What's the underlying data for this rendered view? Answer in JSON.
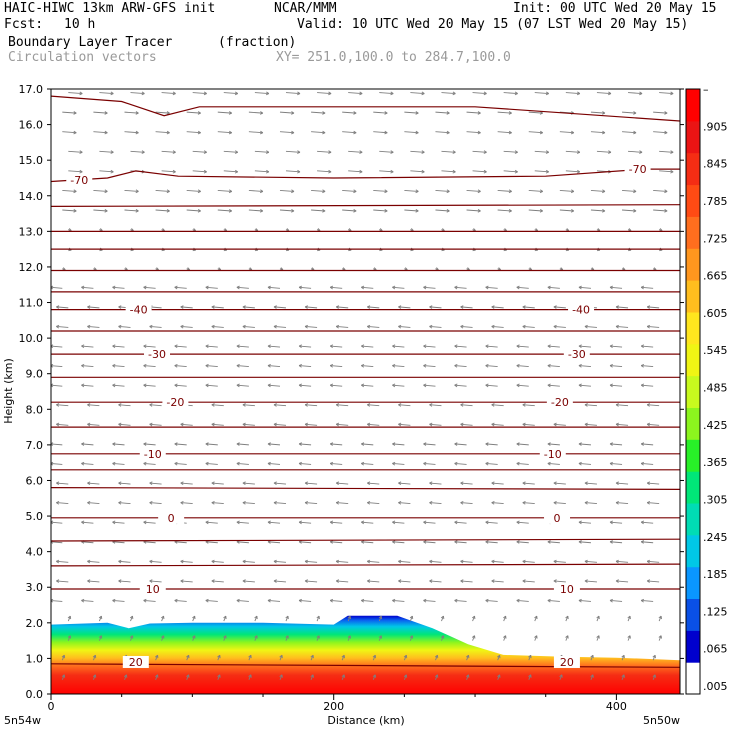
{
  "header": {
    "model": "HAIC-HIWC 13km ARW-GFS init",
    "org": "NCAR/MMM",
    "init": "Init: 00 UTC Wed 20 May 15",
    "fcst_label": "Fcst:",
    "fcst_value": "10 h",
    "valid": "Valid: 10 UTC Wed 20 May 15 (07 LST Wed 20 May 15)",
    "field": "Boundary Layer Tracer",
    "units": "(fraction)",
    "vectors": "Circulation vectors",
    "xy": "XY= 251.0,100.0 to 284.7,100.0"
  },
  "colors": {
    "contour": "#7a0000",
    "vector": "#7f7f7f",
    "colorbar": [
      "#ffffff",
      "#0000cd",
      "#0a50e6",
      "#0a96ff",
      "#00c8e6",
      "#00dcb4",
      "#00e678",
      "#28f028",
      "#8cf51e",
      "#c8fa1e",
      "#f0f514",
      "#ffe61e",
      "#ffbe1e",
      "#ff961e",
      "#ff6e1e",
      "#ff4b14",
      "#f52d14",
      "#eb1414",
      "#ff0000"
    ]
  },
  "chart_data": {
    "type": "heatmap",
    "title": "Boundary Layer Tracer",
    "ylabel": "Height (km)",
    "xlabel": "Distance (km)",
    "xlim": [
      0,
      445
    ],
    "ylim": [
      0,
      17
    ],
    "y_ticks": [
      "0.0",
      "1.0",
      "2.0",
      "3.0",
      "4.0",
      "5.0",
      "6.0",
      "7.0",
      "8.0",
      "9.0",
      "10.0",
      "11.0",
      "12.0",
      "13.0",
      "14.0",
      "15.0",
      "16.0",
      "17.0"
    ],
    "x_ticks": [
      {
        "value": 0,
        "label": "0"
      },
      {
        "value": 200,
        "label": "200"
      },
      {
        "value": 400,
        "label": "400"
      }
    ],
    "x_end_labels": {
      "left": "5n54w",
      "right": "5n50w"
    },
    "colorbar_labels": [
      ".005",
      ".065",
      ".125",
      ".185",
      ".245",
      ".305",
      ".365",
      ".425",
      ".485",
      ".545",
      ".605",
      ".665",
      ".725",
      ".785",
      ".845",
      ".905",
      "–"
    ],
    "tracer_top_km": [
      [
        0,
        1.95
      ],
      [
        40,
        2.0
      ],
      [
        55,
        1.85
      ],
      [
        70,
        1.98
      ],
      [
        100,
        2.0
      ],
      [
        150,
        2.0
      ],
      [
        200,
        1.95
      ],
      [
        210,
        2.2
      ],
      [
        245,
        2.2
      ],
      [
        270,
        1.85
      ],
      [
        295,
        1.4
      ],
      [
        320,
        1.1
      ],
      [
        360,
        1.05
      ],
      [
        400,
        1.02
      ],
      [
        445,
        0.95
      ]
    ],
    "temperature_contours": [
      {
        "label": "-70",
        "points": [
          [
            0,
            14.4
          ],
          [
            40,
            14.5
          ],
          [
            60,
            14.7
          ],
          [
            90,
            14.55
          ],
          [
            200,
            14.5
          ],
          [
            350,
            14.55
          ],
          [
            420,
            14.75
          ],
          [
            445,
            14.75
          ]
        ]
      },
      {
        "label": "",
        "points": [
          [
            0,
            16.8
          ],
          [
            50,
            16.65
          ],
          [
            80,
            16.25
          ],
          [
            105,
            16.5
          ],
          [
            150,
            16.5
          ],
          [
            300,
            16.5
          ],
          [
            445,
            16.1
          ]
        ]
      },
      {
        "label": "",
        "points": [
          [
            0,
            13.7
          ],
          [
            445,
            13.75
          ]
        ]
      },
      {
        "label": "",
        "points": [
          [
            0,
            13.0
          ],
          [
            445,
            13.0
          ]
        ]
      },
      {
        "label": "",
        "points": [
          [
            0,
            12.5
          ],
          [
            445,
            12.5
          ]
        ]
      },
      {
        "label": "",
        "points": [
          [
            0,
            11.9
          ],
          [
            445,
            11.9
          ]
        ]
      },
      {
        "label": "",
        "points": [
          [
            0,
            11.3
          ],
          [
            445,
            11.3
          ]
        ]
      },
      {
        "label": "-40",
        "points": [
          [
            0,
            10.8
          ],
          [
            445,
            10.8
          ]
        ]
      },
      {
        "label": "",
        "points": [
          [
            0,
            10.2
          ],
          [
            445,
            10.2
          ]
        ]
      },
      {
        "label": "-30",
        "points": [
          [
            0,
            9.55
          ],
          [
            445,
            9.55
          ]
        ]
      },
      {
        "label": "",
        "points": [
          [
            0,
            8.9
          ],
          [
            445,
            8.9
          ]
        ]
      },
      {
        "label": "-20",
        "points": [
          [
            0,
            8.2
          ],
          [
            445,
            8.2
          ]
        ]
      },
      {
        "label": "",
        "points": [
          [
            0,
            7.5
          ],
          [
            445,
            7.5
          ]
        ]
      },
      {
        "label": "-10",
        "points": [
          [
            0,
            6.75
          ],
          [
            445,
            6.75
          ]
        ]
      },
      {
        "label": "",
        "points": [
          [
            0,
            6.3
          ],
          [
            445,
            6.3
          ]
        ]
      },
      {
        "label": "",
        "points": [
          [
            0,
            5.8
          ],
          [
            445,
            5.75
          ]
        ]
      },
      {
        "label": "0",
        "points": [
          [
            0,
            4.95
          ],
          [
            445,
            4.95
          ]
        ]
      },
      {
        "label": "",
        "points": [
          [
            0,
            4.3
          ],
          [
            445,
            4.35
          ]
        ]
      },
      {
        "label": "10",
        "points": [
          [
            0,
            2.95
          ],
          [
            445,
            2.95
          ]
        ]
      },
      {
        "label": "",
        "points": [
          [
            0,
            3.6
          ],
          [
            445,
            3.65
          ]
        ]
      },
      {
        "label": "20",
        "points": [
          [
            0,
            0.85
          ],
          [
            445,
            0.75
          ]
        ]
      }
    ],
    "contour_labels": [
      {
        "text": "-70",
        "x": 20,
        "y": 14.45
      },
      {
        "text": "-70",
        "x": 415,
        "y": 14.75
      },
      {
        "text": "-40",
        "x": 62,
        "y": 10.8
      },
      {
        "text": "-40",
        "x": 375,
        "y": 10.8
      },
      {
        "text": "-30",
        "x": 75,
        "y": 9.55
      },
      {
        "text": "-30",
        "x": 372,
        "y": 9.55
      },
      {
        "text": "-20",
        "x": 88,
        "y": 8.2
      },
      {
        "text": "-20",
        "x": 360,
        "y": 8.2
      },
      {
        "text": "-10",
        "x": 72,
        "y": 6.75
      },
      {
        "text": "-10",
        "x": 355,
        "y": 6.75
      },
      {
        "text": "0",
        "x": 85,
        "y": 4.95
      },
      {
        "text": "0",
        "x": 358,
        "y": 4.95
      },
      {
        "text": "10",
        "x": 72,
        "y": 2.95
      },
      {
        "text": "10",
        "x": 365,
        "y": 2.95
      },
      {
        "text": "20",
        "x": 60,
        "y": 0.9
      },
      {
        "text": "20",
        "x": 365,
        "y": 0.9
      }
    ]
  }
}
